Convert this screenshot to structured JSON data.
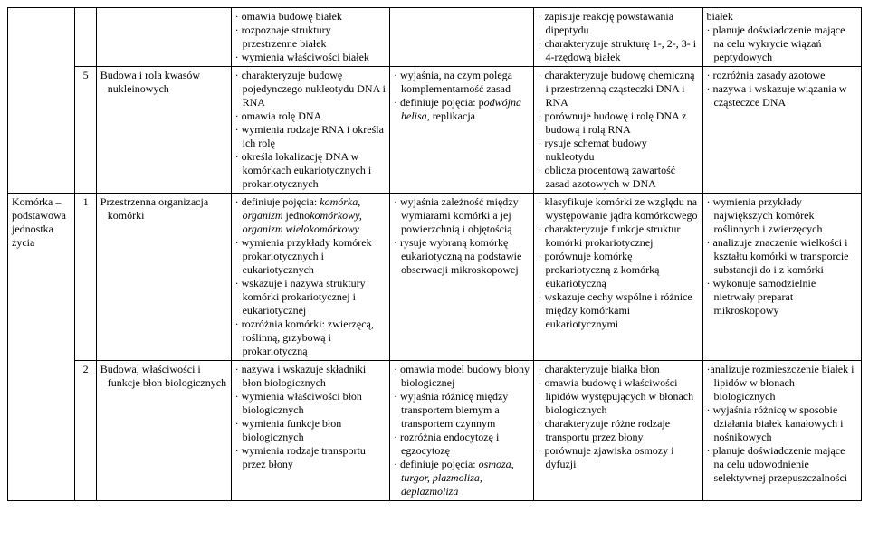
{
  "rows": [
    {
      "c0": "",
      "c1": "",
      "c2": "",
      "c3": "· omawia budowę białek\n· rozpoznaje struktury przestrzenne białek\n· wymienia właściwości białek",
      "c4": "",
      "c5": "· zapisuje reakcję powstawania dipeptydu\n· charakteryzuje strukturę 1-, 2-, 3- i 4-rzędową białek",
      "c6": "białek\n· planuje doświadczenie mające na celu wykrycie wiązań peptydowych"
    },
    {
      "c0": "",
      "c1": "5",
      "c2": "Budowa i rola kwasów nukleinowych",
      "c3": "· charakteryzuje budowę pojedynczego nukleotydu DNA i RNA\n· omawia rolę DNA\n· wymienia rodzaje RNA i określa ich rolę\n· określa lokalizację DNA w komórkach eukariotycznych i prokariotycznych",
      "c4": "· wyjaśnia, na czym polega komplementarność zasad\n· definiuje pojęcia: p<i>odwójna helisa</i>, replikacja",
      "c5": "· charakteryzuje budowę chemiczną i przestrzenną cząsteczki DNA i RNA\n· porównuje budowę i rolę DNA z budową i rolą RNA\n· rysuje schemat budowy nukleotydu\n· oblicza procentową zawartość zasad azotowych w DNA",
      "c6": "· rozróżnia zasady azotowe\n· nazywa i wskazuje wiązania w cząsteczce DNA"
    },
    {
      "c0": "Komórka – podstawowa jednostka życia",
      "c1": "1",
      "c2": "Przestrzenna organizacja komórki",
      "c3": "· definiuje pojęcia: <i>komórka, organizm</i> jedno<i>komórkowy, organizm wielokomórkowy</i>\n· wymienia przykłady komórek prokariotycznych i eukariotycznych\n· wskazuje i nazywa struktury komórki prokariotycznej i eukariotycznej\n· rozróżnia komórki: zwierzęcą, roślinną, grzybową i prokariotyczną",
      "c4": "· wyjaśnia zależność między wymiarami komórki a jej powierzchnią i objętością\n· rysuje wybraną komórkę eukariotyczną na podstawie obserwacji mikroskopowej",
      "c5": "· klasyfikuje komórki ze względu na występowanie jądra komórkowego\n· charakteryzuje funkcje struktur komórki prokariotycznej\n· porównuje komórkę prokariotyczną z komórką eukariotyczną\n· wskazuje cechy wspólne i różnice między komórkami eukariotycznymi",
      "c6": "· wymienia przykłady największych komórek roślinnych i zwierzęcych\n· analizuje znaczenie wielkości i kształtu komórki w transporcie substancji do i z komórki\n· wykonuje samodzielnie nietrwały preparat mikroskopowy"
    },
    {
      "c0": "",
      "c1": "2",
      "c2": "Budowa, właściwości i funkcje błon biologicznych",
      "c3": "· nazywa i wskazuje składniki błon biologicznych\n· wymienia właściwości błon biologicznych\n· wymienia funkcje błon biologicznych\n· wymienia rodzaje transportu przez błony",
      "c4": "· omawia model budowy błony biologicznej\n· wyjaśnia różnicę między transportem biernym a transportem czynnym\n· rozróżnia endocytozę i egzocytozę\n· definiuje pojęcia: <i>osmoza, turgor, plazmoliza, deplazmoliza</i>",
      "c5": "· charakteryzuje białka błon\n· omawia budowę i właściwości lipidów występujących w błonach biologicznych\n· charakteryzuje różne rodzaje transportu przez błony\n· porównuje zjawiska osmozy i dyfuzji",
      "c6": "·analizuje rozmieszczenie białek i lipidów w błonach biologicznych\n· wyjaśnia różnicę w sposobie działania białek kanałowych i nośnikowych\n· planuje doświadczenie mające na celu udowodnienie selektywnej przepuszczalności"
    }
  ],
  "span": {
    "col0_start": 2,
    "col0_rowspan": 2,
    "col01_empty_rowspan": 2
  }
}
